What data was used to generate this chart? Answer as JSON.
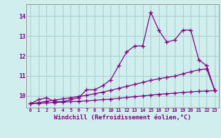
{
  "x": [
    0,
    1,
    2,
    3,
    4,
    5,
    6,
    7,
    8,
    9,
    10,
    11,
    12,
    13,
    14,
    15,
    16,
    17,
    18,
    19,
    20,
    21,
    22,
    23
  ],
  "line1": [
    9.6,
    9.8,
    9.9,
    9.7,
    9.7,
    9.8,
    9.9,
    10.3,
    10.3,
    10.5,
    10.8,
    11.5,
    12.2,
    12.5,
    12.5,
    14.2,
    13.3,
    12.7,
    12.8,
    13.3,
    13.3,
    11.8,
    11.5,
    10.25
  ],
  "line2": [
    9.6,
    9.65,
    9.72,
    9.78,
    9.84,
    9.9,
    9.96,
    10.02,
    10.1,
    10.18,
    10.27,
    10.37,
    10.47,
    10.57,
    10.67,
    10.77,
    10.85,
    10.92,
    10.98,
    11.1,
    11.2,
    11.3,
    11.35,
    10.25
  ],
  "line3": [
    9.6,
    9.62,
    9.64,
    9.66,
    9.68,
    9.7,
    9.72,
    9.74,
    9.77,
    9.8,
    9.83,
    9.87,
    9.91,
    9.95,
    9.99,
    10.03,
    10.07,
    10.1,
    10.13,
    10.16,
    10.19,
    10.22,
    10.24,
    10.25
  ],
  "line_color": "#800080",
  "bg_color": "#d0eeee",
  "grid_color": "#aacccc",
  "xlabel": "Windchill (Refroidissement éolien,°C)",
  "ylabel_ticks": [
    10,
    11,
    12,
    13,
    14
  ],
  "xtick_labels": [
    "0",
    "1",
    "2",
    "3",
    "4",
    "5",
    "6",
    "7",
    "8",
    "9",
    "10",
    "11",
    "12",
    "13",
    "14",
    "15",
    "16",
    "17",
    "18",
    "19",
    "20",
    "21",
    "22",
    "23"
  ],
  "ylim": [
    9.4,
    14.6
  ],
  "xlim": [
    -0.5,
    23.5
  ],
  "marker": "+",
  "markersize": 4,
  "linewidth": 0.9
}
